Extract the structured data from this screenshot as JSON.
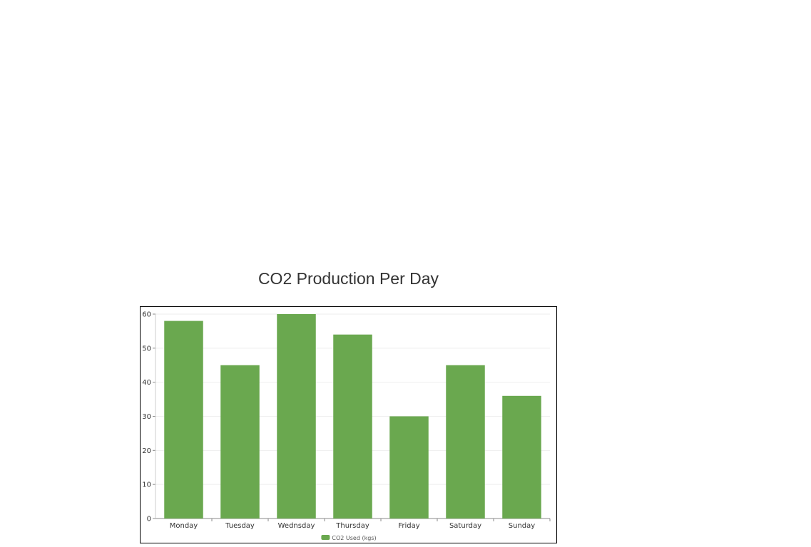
{
  "chart_data": {
    "type": "bar",
    "title": "CO2 Production Per Day",
    "categories": [
      "Monday",
      "Tuesday",
      "Wednsday",
      "Thursday",
      "Friday",
      "Saturday",
      "Sunday"
    ],
    "series": [
      {
        "name": "CO2 Used (kgs)",
        "values": [
          58,
          45,
          60,
          54,
          30,
          45,
          36
        ],
        "color": "#6aa84f"
      }
    ],
    "xlabel": "",
    "ylabel": "",
    "ylim": [
      0,
      60
    ],
    "yticks": [
      0,
      10,
      20,
      30,
      40,
      50,
      60
    ],
    "grid": true,
    "legend": "bottom-center"
  }
}
